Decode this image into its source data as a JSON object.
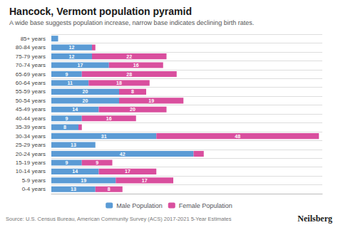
{
  "chart_data": {
    "type": "bar",
    "orientation": "horizontal",
    "stacked": true,
    "title": "Hancock, Vermont population pyramid",
    "subtitle": "A wide base suggests population increase, narrow base indicates declining birth rates.",
    "annotations": [
      "Source: U.S. Census Bureau, American Community Survey (ACS) 2017-2021 5-Year Estimates",
      "Neilsberg"
    ],
    "categories": [
      "0-4 years",
      "5-9 years",
      "10-14 years",
      "15-19 years",
      "20-24 years",
      "25-29 years",
      "30-34 years",
      "35-39 years",
      "40-44 years",
      "45-49 years",
      "50-54 years",
      "55-59 years",
      "60-64 years",
      "65-69 years",
      "70-74 years",
      "75-79 years",
      "80-84 years",
      "85+ years"
    ],
    "series": [
      {
        "name": "Male Population",
        "color": "#5b9bd5",
        "values": [
          13,
          19,
          14,
          9,
          42,
          13,
          31,
          8,
          9,
          14,
          20,
          20,
          11,
          9,
          17,
          12,
          12,
          2
        ],
        "value_labels": [
          "13",
          "19",
          "14",
          "9",
          "42",
          "13",
          "31",
          "8",
          "9",
          "14",
          "20",
          "20",
          "11",
          "9",
          "17",
          "12",
          "12",
          null
        ]
      },
      {
        "name": "Female Population",
        "color": "#d94f9e",
        "values": [
          8,
          17,
          17,
          9,
          3,
          0,
          48,
          1,
          16,
          20,
          19,
          8,
          18,
          28,
          16,
          22,
          1,
          0
        ],
        "value_labels": [
          "8",
          "17",
          "17",
          "9",
          null,
          null,
          "48",
          null,
          "16",
          "20",
          "19",
          "8",
          "18",
          "28",
          "16",
          "22",
          null,
          null
        ]
      }
    ],
    "xlim": [
      0,
      80
    ],
    "tick_labels": "y",
    "data_labels": true,
    "grid": true,
    "legend": "bottom"
  }
}
